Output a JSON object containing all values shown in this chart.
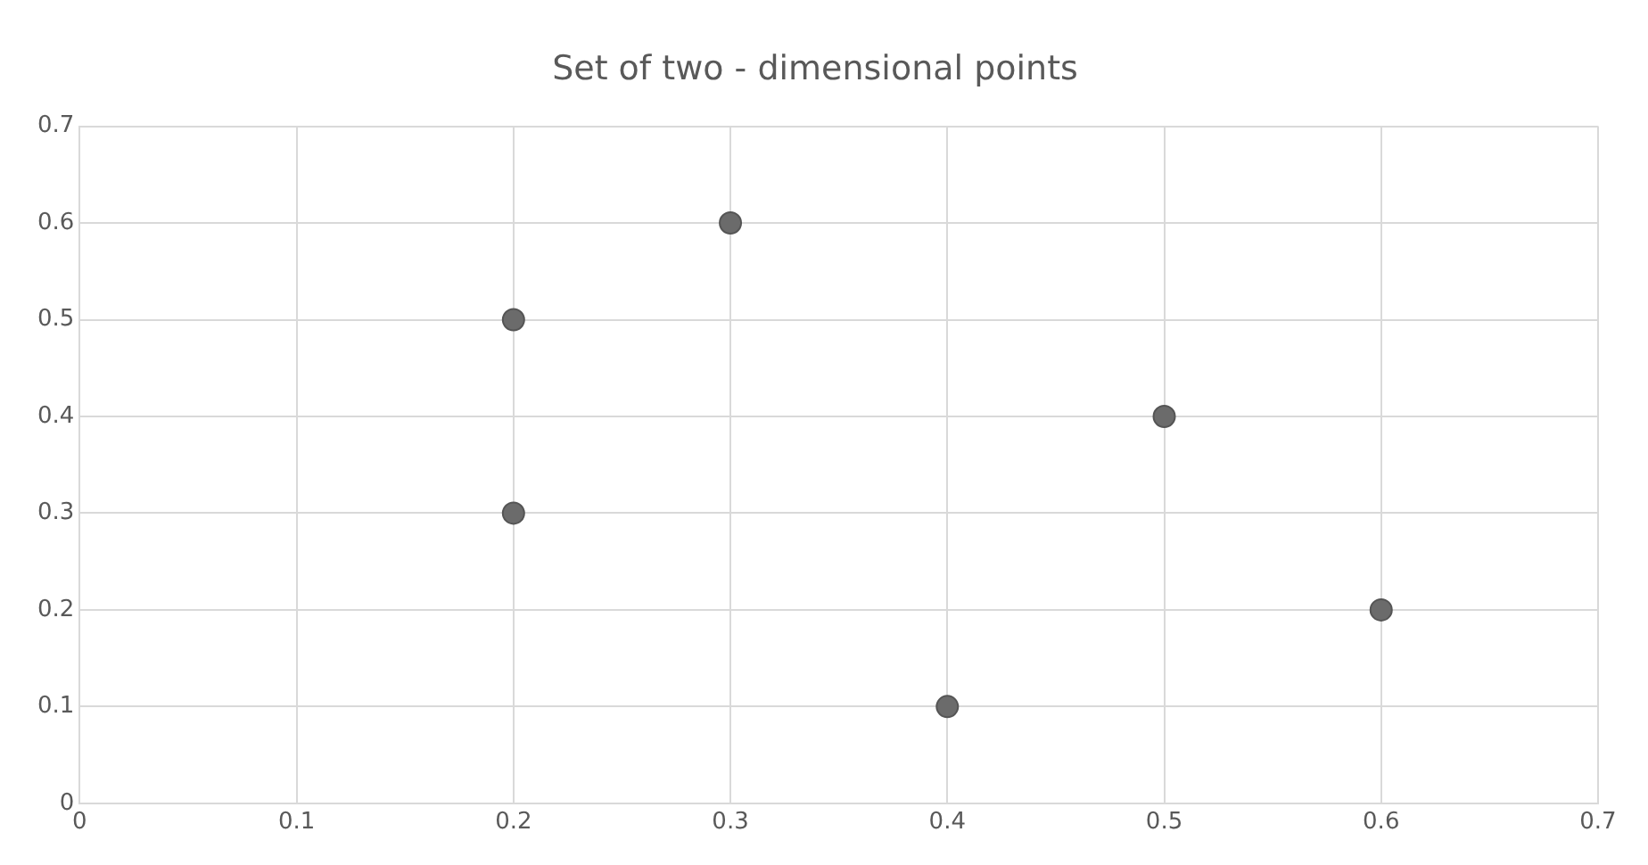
{
  "chart_data": {
    "type": "scatter",
    "title": "Set of two - dimensional points",
    "x": [
      0.2,
      0.2,
      0.3,
      0.4,
      0.5,
      0.6
    ],
    "values": [
      0.5,
      0.3,
      0.6,
      0.1,
      0.4,
      0.2
    ],
    "color": "#6b6b6b",
    "xlim": [
      0,
      0.7
    ],
    "xticks": [
      0,
      0.1,
      0.2,
      0.3,
      0.4,
      0.5,
      0.6,
      0.7
    ],
    "ylim": [
      0,
      0.7
    ],
    "yticks": [
      0,
      0.1,
      0.2,
      0.3,
      0.4,
      0.5,
      0.6,
      0.7
    ],
    "grid": true,
    "marker": "circle",
    "legend": false
  }
}
